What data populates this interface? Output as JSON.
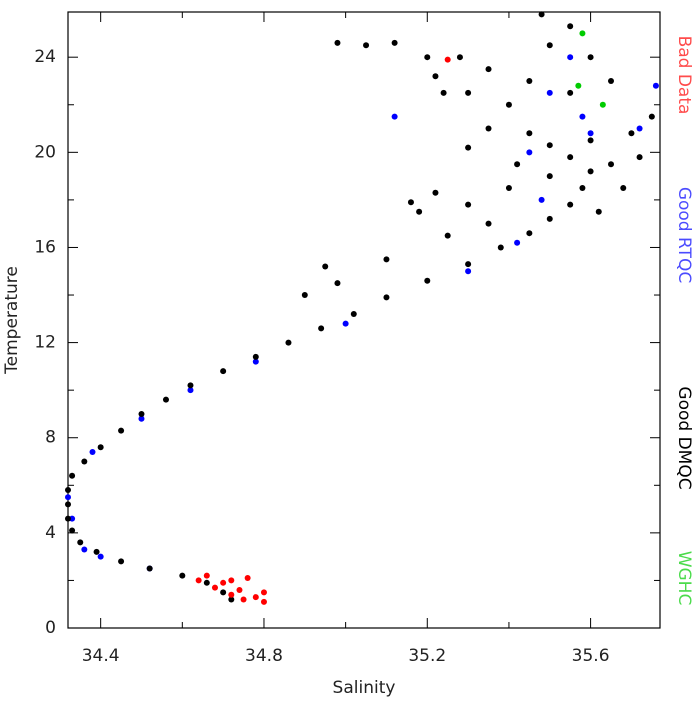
{
  "chart_data": {
    "type": "scatter",
    "x_label": "Salinity",
    "y_label": "Temperature",
    "xlim": [
      34.32,
      35.77
    ],
    "ylim": [
      0,
      25.9
    ],
    "xticks": [
      34.4,
      34.8,
      35.2,
      35.6
    ],
    "minor_xticks": [
      34.6,
      35.0,
      35.4
    ],
    "yticks": [
      0,
      4,
      8,
      12,
      16,
      20,
      24
    ],
    "minor_yticks": [
      2,
      6,
      10,
      14,
      18,
      22
    ],
    "legend_position": "right",
    "series": [
      {
        "name": "Bad Data",
        "color": "#ff0000",
        "x": [
          34.66,
          34.7,
          34.74,
          34.78,
          34.8,
          34.72,
          34.76,
          34.68,
          34.75,
          34.8,
          34.64,
          34.72,
          35.25
        ],
        "values": [
          2.2,
          1.9,
          1.6,
          1.3,
          1.1,
          2.0,
          2.1,
          1.7,
          1.2,
          1.5,
          2.0,
          1.4,
          23.9
        ]
      },
      {
        "name": "Good RTQC",
        "color": "#0000ff",
        "x": [
          34.36,
          34.33,
          34.32,
          34.38,
          34.5,
          34.62,
          34.78,
          35.0,
          35.3,
          35.42,
          35.48,
          35.45,
          35.55,
          35.5,
          35.58,
          35.72,
          35.76,
          35.12,
          35.6,
          34.52,
          34.4
        ],
        "values": [
          3.3,
          4.6,
          5.5,
          7.4,
          8.8,
          10.0,
          11.2,
          12.8,
          15.0,
          16.2,
          18.0,
          20.0,
          24.0,
          22.5,
          21.5,
          21.0,
          22.8,
          21.5,
          20.8,
          2.5,
          3.0
        ]
      },
      {
        "name": "Good DMQC",
        "color": "#000000",
        "x": [
          34.72,
          34.7,
          34.66,
          34.6,
          34.52,
          34.45,
          34.39,
          34.35,
          34.33,
          34.32,
          34.32,
          34.32,
          34.33,
          34.36,
          34.4,
          34.45,
          34.5,
          34.56,
          34.62,
          34.7,
          34.78,
          34.86,
          34.94,
          35.02,
          35.1,
          35.2,
          35.3,
          35.38,
          35.45,
          35.5,
          35.55,
          35.58,
          35.6,
          35.55,
          35.5,
          35.45,
          35.6,
          35.65,
          35.7,
          35.75,
          35.4,
          35.45,
          35.5,
          35.55,
          35.6,
          35.35,
          35.28,
          35.3,
          35.35,
          35.42,
          35.55,
          35.65,
          35.48,
          34.98,
          35.05,
          35.12,
          35.2,
          35.22,
          35.24,
          35.16,
          35.18,
          35.22,
          35.3,
          35.3,
          34.95,
          34.98,
          34.9,
          35.1,
          35.4,
          35.5,
          35.62,
          35.68,
          35.72,
          35.25,
          35.35
        ],
        "values": [
          1.2,
          1.5,
          1.9,
          2.2,
          2.5,
          2.8,
          3.2,
          3.6,
          4.1,
          4.6,
          5.2,
          5.8,
          6.4,
          7.0,
          7.6,
          8.3,
          9.0,
          9.6,
          10.2,
          10.8,
          11.4,
          12.0,
          12.6,
          13.2,
          13.9,
          14.6,
          15.3,
          16.0,
          16.6,
          17.2,
          17.8,
          18.5,
          19.2,
          19.8,
          20.3,
          20.8,
          20.5,
          19.5,
          20.8,
          21.5,
          22.0,
          23.0,
          24.5,
          25.3,
          24.0,
          23.5,
          24.0,
          22.5,
          21.0,
          19.5,
          22.5,
          23.0,
          25.8,
          24.6,
          24.5,
          24.6,
          24.0,
          23.2,
          22.5,
          17.9,
          17.5,
          18.3,
          17.8,
          20.2,
          15.2,
          14.5,
          14.0,
          15.5,
          18.5,
          19.0,
          17.5,
          18.5,
          19.8,
          16.5,
          17.0
        ]
      },
      {
        "name": "WGHC",
        "color": "#00cc00",
        "x": [
          35.57,
          35.63,
          35.58
        ],
        "values": [
          22.8,
          22.0,
          25.0
        ]
      }
    ]
  }
}
